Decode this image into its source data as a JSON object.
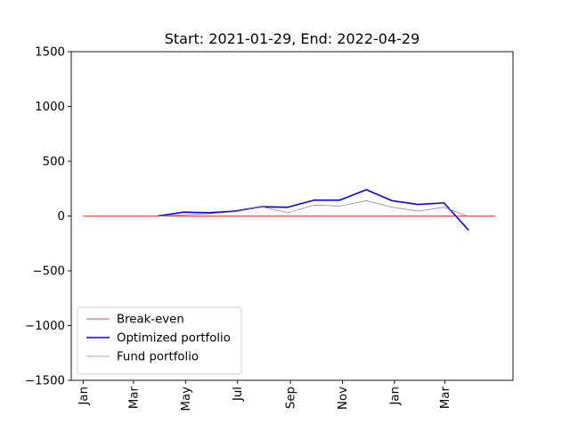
{
  "chart_data": {
    "type": "line",
    "title": "Start: 2021-01-29, End: 2022-04-29",
    "xlabel": "",
    "ylabel": "",
    "ylim": [
      -1500,
      1500
    ],
    "xlim": [
      "2020-12-18",
      "2022-05-20"
    ],
    "y_ticks": [
      {
        "value": 1500,
        "label": "1500"
      },
      {
        "value": 1000,
        "label": "1000"
      },
      {
        "value": 500,
        "label": "500"
      },
      {
        "value": 0,
        "label": "0"
      },
      {
        "value": -500,
        "label": "−500"
      },
      {
        "value": -1000,
        "label": "−1000"
      },
      {
        "value": -1500,
        "label": "−1500"
      }
    ],
    "x_ticks": [
      {
        "date": "2021-01-01",
        "label": "Jan"
      },
      {
        "date": "2021-03-01",
        "label": "Mar"
      },
      {
        "date": "2021-05-01",
        "label": "May"
      },
      {
        "date": "2021-07-01",
        "label": "Jul"
      },
      {
        "date": "2021-09-01",
        "label": "Sep"
      },
      {
        "date": "2021-11-01",
        "label": "Nov"
      },
      {
        "date": "2022-01-01",
        "label": "Jan"
      },
      {
        "date": "2022-03-01",
        "label": "Mar"
      }
    ],
    "grid": false,
    "legend_position": "lower-left",
    "series": [
      {
        "name": "Break-even",
        "color": "#ff0000",
        "style": "thin",
        "points": [
          {
            "x": "2021-01-01",
            "y": 0
          },
          {
            "x": "2022-04-29",
            "y": 0
          }
        ]
      },
      {
        "name": "Optimized portfolio",
        "color": "#0000ff",
        "style": "thick",
        "points": [
          {
            "x": "2021-03-29",
            "y": 0
          },
          {
            "x": "2021-04-29",
            "y": 35
          },
          {
            "x": "2021-05-29",
            "y": 30
          },
          {
            "x": "2021-06-29",
            "y": 45
          },
          {
            "x": "2021-07-29",
            "y": 85
          },
          {
            "x": "2021-08-29",
            "y": 80
          },
          {
            "x": "2021-09-29",
            "y": 145
          },
          {
            "x": "2021-10-29",
            "y": 145
          },
          {
            "x": "2021-11-29",
            "y": 240
          },
          {
            "x": "2021-12-29",
            "y": 140
          },
          {
            "x": "2022-01-29",
            "y": 105
          },
          {
            "x": "2022-02-28",
            "y": 120
          },
          {
            "x": "2022-03-29",
            "y": -130
          }
        ]
      },
      {
        "name": "Fund portfolio",
        "color": "#808080",
        "style": "thin",
        "points": [
          {
            "x": "2021-03-29",
            "y": 0
          },
          {
            "x": "2021-04-29",
            "y": 10
          },
          {
            "x": "2021-05-29",
            "y": 20
          },
          {
            "x": "2021-06-29",
            "y": 40
          },
          {
            "x": "2021-07-29",
            "y": 85
          },
          {
            "x": "2021-08-29",
            "y": 30
          },
          {
            "x": "2021-09-29",
            "y": 100
          },
          {
            "x": "2021-10-29",
            "y": 90
          },
          {
            "x": "2021-11-29",
            "y": 140
          },
          {
            "x": "2021-12-29",
            "y": 80
          },
          {
            "x": "2022-01-29",
            "y": 45
          },
          {
            "x": "2022-02-28",
            "y": 80
          },
          {
            "x": "2022-03-29",
            "y": -5
          }
        ]
      }
    ]
  }
}
